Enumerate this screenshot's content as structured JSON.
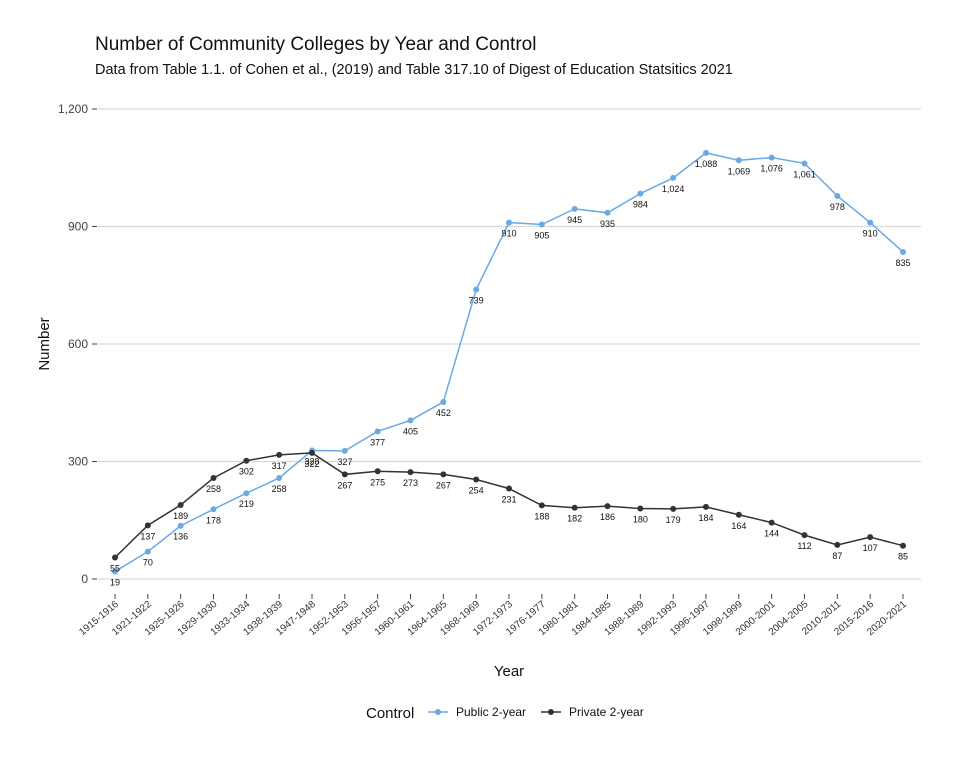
{
  "chart_data": {
    "type": "line",
    "title": "Number of Community Colleges by Year and Control",
    "subtitle": "Data from Table 1.1. of Cohen et al., (2019) and Table 317.10 of Digest of Education Statsitics 2021",
    "xlabel": "Year",
    "ylabel": "Number",
    "ylim": [
      0,
      1200
    ],
    "yticks": [
      0,
      300,
      600,
      900,
      1200
    ],
    "ytick_labels": [
      "0",
      "300",
      "600",
      "900",
      "1,200"
    ],
    "grid": "horizontal",
    "legend_title": "Control",
    "legend_position": "bottom",
    "categories": [
      "1915-1916",
      "1921-1922",
      "1925-1926",
      "1929-1930",
      "1933-1934",
      "1938-1939",
      "1947-1948",
      "1952-1953",
      "1956-1957",
      "1960-1961",
      "1964-1965",
      "1968-1969",
      "1972-1973",
      "1976-1977",
      "1980-1981",
      "1984-1985",
      "1988-1989",
      "1992-1993",
      "1996-1997",
      "1998-1999",
      "2000-2001",
      "2004-2005",
      "2010-2011",
      "2015-2016",
      "2020-2021"
    ],
    "series": [
      {
        "name": "Public 2-year",
        "color": "#6aaae4",
        "values": [
          19,
          70,
          136,
          178,
          219,
          258,
          328,
          327,
          377,
          405,
          452,
          739,
          910,
          905,
          945,
          935,
          984,
          1024,
          1088,
          1069,
          1076,
          1061,
          978,
          910,
          835
        ],
        "labels": [
          "19",
          "70",
          "136",
          "178",
          "219",
          "258",
          "328",
          "327",
          "377",
          "405",
          "452",
          "739",
          "910",
          "905",
          "945",
          "935",
          "984",
          "1,024",
          "1,088",
          "1,069",
          "1,076",
          "1,061",
          "978",
          "910",
          "835"
        ]
      },
      {
        "name": "Private 2-year",
        "color": "#333333",
        "values": [
          55,
          137,
          189,
          258,
          302,
          317,
          322,
          267,
          275,
          273,
          267,
          254,
          231,
          188,
          182,
          186,
          180,
          179,
          184,
          164,
          144,
          112,
          87,
          107,
          85
        ],
        "labels": [
          "55",
          "137",
          "189",
          "258",
          "302",
          "317",
          "322",
          "267",
          "275",
          "273",
          "267",
          "254",
          "231",
          "188",
          "182",
          "186",
          "180",
          "179",
          "184",
          "164",
          "144",
          "112",
          "87",
          "107",
          "85"
        ]
      }
    ]
  }
}
